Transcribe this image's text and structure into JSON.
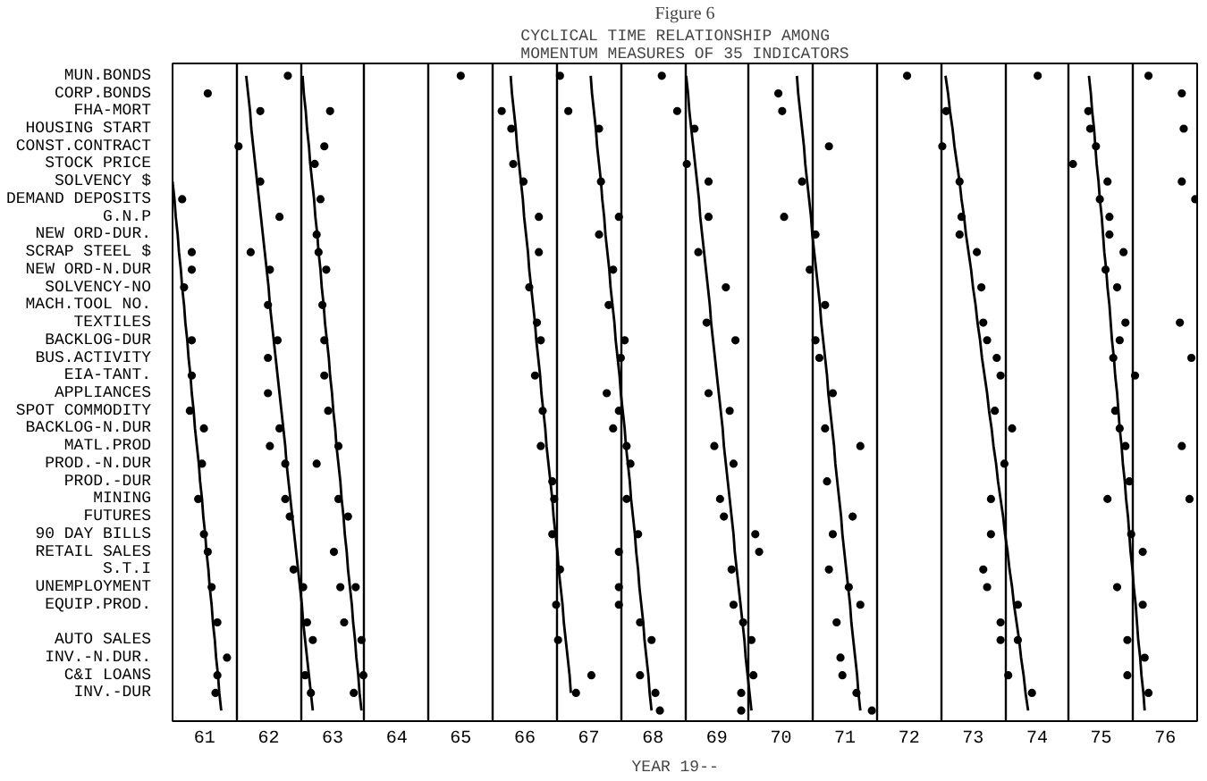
{
  "chart_data": {
    "type": "scatter",
    "orientation": "horizontal",
    "title": "Figure 6",
    "subtitle": "CYCLICAL TIME RELATIONSHIP AMONG\nMOMENTUM MEASURES OF 35 INDICATORS",
    "xlabel": "YEAR   19--",
    "xlim": [
      61,
      77
    ],
    "xticks": [
      {
        "value": 61,
        "label": null
      },
      {
        "value": 61.5,
        "label": "61"
      },
      {
        "value": 62,
        "label": null
      },
      {
        "value": 62.5,
        "label": "62"
      },
      {
        "value": 63,
        "label": null
      },
      {
        "value": 63.5,
        "label": "63"
      },
      {
        "value": 64,
        "label": null
      },
      {
        "value": 64.5,
        "label": "64"
      },
      {
        "value": 65,
        "label": null
      },
      {
        "value": 65.5,
        "label": "65"
      },
      {
        "value": 66,
        "label": null
      },
      {
        "value": 66.5,
        "label": "66"
      },
      {
        "value": 67,
        "label": null
      },
      {
        "value": 67.5,
        "label": "67"
      },
      {
        "value": 68,
        "label": null
      },
      {
        "value": 68.5,
        "label": "68"
      },
      {
        "value": 69,
        "label": null
      },
      {
        "value": 69.5,
        "label": "69"
      },
      {
        "value": 70,
        "label": null
      },
      {
        "value": 70.5,
        "label": "70"
      },
      {
        "value": 71,
        "label": null
      },
      {
        "value": 71.5,
        "label": "71"
      },
      {
        "value": 72,
        "label": null
      },
      {
        "value": 72.5,
        "label": "72"
      },
      {
        "value": 73,
        "label": null
      },
      {
        "value": 73.5,
        "label": "73"
      },
      {
        "value": 74,
        "label": null
      },
      {
        "value": 74.5,
        "label": "74"
      },
      {
        "value": 75,
        "label": null
      },
      {
        "value": 75.5,
        "label": "75"
      },
      {
        "value": 76,
        "label": null
      },
      {
        "value": 76.5,
        "label": "76"
      },
      {
        "value": 77,
        "label": null
      }
    ],
    "categories": [
      "MUN.BONDS",
      "CORP.BONDS",
      "FHA-MORT",
      "HOUSING START",
      "CONST.CONTRACT",
      "STOCK PRICE",
      "SOLVENCY $",
      "DEMAND DEPOSITS",
      "G.N.P",
      "NEW ORD-DUR.",
      "SCRAP STEEL $",
      "NEW ORD-N.DUR",
      "SOLVENCY-NO",
      "MACH.TOOL NO.",
      "TEXTILES",
      "BACKLOG-DUR",
      "BUS.ACTIVITY",
      "EIA-TANT.",
      "APPLIANCES",
      "SPOT COMMODITY",
      "BACKLOG-N.DUR",
      "MATL.PROD",
      "PROD.-N.DUR",
      "PROD.-DUR",
      "MINING",
      "FUTURES",
      "90 DAY BILLS",
      "RETAIL SALES",
      "S.T.I",
      "UNEMPLOYMENT",
      "EQUIP.PROD.",
      null,
      "AUTO SALES",
      "INV.-N.DUR.",
      "C&I LOANS",
      "INV.-DUR",
      null
    ],
    "grid": "x",
    "marker": "circle",
    "series": [
      {
        "color": "#000000",
        "values": [
          62.8,
          61.55,
          62.37,
          66.29,
          62.03,
          63.22,
          62.37,
          61.15,
          62.67,
          63.25,
          61.3,
          61.3,
          61.18,
          62.49,
          66.69,
          61.3,
          62.49,
          61.3,
          62.49,
          61.27,
          61.49,
          62.52,
          61.46,
          66.93,
          61.4,
          62.83,
          61.49,
          61.55,
          62.89,
          61.61,
          66.99,
          61.7,
          63.19,
          61.85,
          61.7,
          61.67,
          68.61
        ]
      },
      {
        "color": "#000000",
        "values": [
          65.5,
          70.46,
          63.46,
          67.66,
          63.37,
          66.32,
          66.48,
          63.31,
          66.72,
          67.66,
          62.22,
          62.52,
          66.57,
          63.34,
          69.34,
          62.64,
          68.0,
          63.37,
          67.78,
          63.43,
          62.67,
          63.59,
          62.76,
          71.22,
          62.76,
          63.74,
          66.93,
          63.52,
          67.05,
          63.04,
          67.97,
          63.1,
          63.95,
          71.43,
          63.07,
          63.16,
          69.88
        ]
      },
      {
        "color": "#000000",
        "values": [
          67.05,
          76.76,
          66.14,
          69.15,
          71.25,
          69.03,
          67.69,
          75.48,
          67.97,
          71.04,
          63.28,
          63.4,
          69.64,
          67.81,
          73.66,
          63.37,
          71.1,
          66.66,
          69.37,
          66.78,
          67.88,
          66.75,
          63.25,
          75.94,
          63.59,
          69.61,
          68.27,
          67.97,
          69.73,
          63.62,
          69.76,
          63.68,
          67.02,
          76.18,
          63.98,
          63.83,
          71.92
        ]
      },
      {
        "color": "#000000",
        "values": [
          68.64,
          null,
          67.18,
          75.33,
          73.02,
          75.06,
          69.37,
          76.97,
          69.37,
          73.29,
          66.72,
          67.88,
          73.63,
          71.19,
          75.88,
          66.75,
          73.87,
          73.93,
          71.31,
          67.97,
          71.19,
          68.09,
          68.15,
          null,
          66.96,
          71.62,
          70.1,
          70.16,
          71.25,
          63.86,
          71.74,
          68.3,
          68.48,
          null,
          67.54,
          67.3,
          null
        ]
      },
      {
        "color": "#000000",
        "values": [
          72.47,
          null,
          68.88,
          76.79,
          75.42,
          null,
          70.83,
          null,
          70.55,
          75.63,
          69.21,
          70.95,
          75.75,
          null,
          76.73,
          68.06,
          75.69,
          76.03,
          null,
          69.7,
          74.11,
          69.46,
          69.76,
          null,
          68.09,
          null,
          71.31,
          76.15,
          73.66,
          67.97,
          74.2,
          69.91,
          70.04,
          null,
          68.3,
          68.54,
          null
        ]
      },
      {
        "color": "#000000",
        "values": [
          74.51,
          null,
          70.52,
          null,
          null,
          null,
          73.29,
          null,
          73.32,
          null,
          73.56,
          75.57,
          null,
          null,
          null,
          69.79,
          76.91,
          null,
          null,
          73.84,
          75.79,
          71.74,
          73.99,
          null,
          69.55,
          null,
          73.78,
          null,
          null,
          71.56,
          76.15,
          71.37,
          73.93,
          null,
          70.07,
          69.88,
          null
        ]
      },
      {
        "color": "#000000",
        "values": [
          76.24,
          null,
          73.08,
          null,
          null,
          null,
          75.6,
          null,
          75.63,
          null,
          75.85,
          null,
          null,
          null,
          null,
          71.04,
          null,
          null,
          null,
          75.72,
          null,
          75.88,
          null,
          null,
          73.78,
          null,
          75.97,
          null,
          null,
          73.72,
          null,
          73.93,
          74.2,
          null,
          71.46,
          71.68,
          null
        ]
      },
      {
        "color": "#000000",
        "values": [
          null,
          null,
          75.3,
          null,
          null,
          null,
          76.76,
          null,
          null,
          null,
          null,
          null,
          null,
          null,
          null,
          73.72,
          null,
          null,
          null,
          null,
          null,
          76.76,
          null,
          null,
          75.6,
          null,
          null,
          null,
          null,
          75.75,
          null,
          null,
          75.91,
          null,
          74.05,
          74.42,
          null
        ]
      },
      {
        "color": "#000000",
        "values": [
          null,
          null,
          null,
          null,
          null,
          null,
          null,
          null,
          null,
          null,
          null,
          null,
          null,
          null,
          null,
          75.79,
          null,
          null,
          null,
          null,
          null,
          null,
          null,
          null,
          76.88,
          null,
          null,
          null,
          null,
          null,
          null,
          null,
          null,
          null,
          75.91,
          76.24,
          null
        ]
      },
      {
        "type": "line",
        "marker": "none",
        "color": "#000000",
        "values": [
          null,
          null,
          null,
          null,
          null,
          null,
          61.0,
          61.03,
          61.05,
          61.08,
          61.1,
          61.13,
          61.15,
          61.18,
          61.2,
          61.23,
          61.25,
          61.28,
          61.3,
          61.33,
          61.35,
          61.38,
          61.41,
          61.43,
          61.46,
          61.48,
          61.51,
          61.53,
          61.56,
          61.58,
          61.61,
          61.63,
          61.66,
          61.68,
          61.71,
          61.73,
          61.76
        ]
      },
      {
        "type": "line",
        "marker": "none",
        "color": "#000000",
        "values": [
          62.15,
          62.18,
          62.21,
          62.23,
          62.26,
          62.29,
          62.32,
          62.35,
          62.38,
          62.41,
          62.44,
          62.47,
          62.5,
          62.52,
          62.55,
          62.58,
          62.61,
          62.64,
          62.67,
          62.7,
          62.73,
          62.76,
          62.78,
          62.81,
          62.84,
          62.87,
          62.9,
          62.93,
          62.96,
          62.99,
          63.02,
          63.04,
          63.07,
          63.1,
          63.13,
          63.16,
          63.19
        ]
      },
      {
        "type": "line",
        "marker": "none",
        "color": "#000000",
        "values": [
          63.03,
          63.05,
          63.08,
          63.1,
          63.13,
          63.15,
          63.18,
          63.21,
          63.23,
          63.26,
          63.28,
          63.31,
          63.33,
          63.36,
          63.38,
          63.41,
          63.44,
          63.46,
          63.49,
          63.51,
          63.54,
          63.56,
          63.59,
          63.62,
          63.64,
          63.67,
          63.69,
          63.72,
          63.74,
          63.77,
          63.8,
          63.82,
          63.85,
          63.87,
          63.9,
          63.92,
          63.95
        ]
      },
      {
        "type": "line",
        "marker": "none",
        "color": "#000000",
        "values": [
          66.28,
          66.3,
          66.33,
          66.36,
          66.38,
          66.41,
          66.44,
          66.47,
          66.49,
          66.52,
          66.55,
          66.57,
          66.6,
          66.63,
          66.66,
          66.68,
          66.71,
          66.74,
          66.76,
          66.79,
          66.82,
          66.84,
          66.87,
          66.9,
          66.93,
          66.95,
          66.98,
          67.01,
          67.03,
          67.06,
          67.09,
          67.11,
          67.14,
          67.17,
          67.2,
          67.22,
          null
        ]
      },
      {
        "type": "line",
        "marker": "none",
        "color": "#000000",
        "values": [
          67.53,
          67.55,
          67.58,
          67.61,
          67.63,
          67.66,
          67.69,
          67.71,
          67.74,
          67.76,
          67.79,
          67.82,
          67.84,
          67.87,
          67.9,
          67.92,
          67.95,
          67.98,
          68.0,
          68.03,
          68.06,
          68.08,
          68.11,
          68.14,
          68.16,
          68.19,
          68.22,
          68.24,
          68.27,
          68.29,
          68.32,
          68.35,
          68.37,
          68.4,
          68.43,
          68.45,
          68.48
        ]
      },
      {
        "type": "line",
        "marker": "none",
        "color": "#000000",
        "values": [
          69.02,
          69.05,
          69.07,
          69.1,
          69.13,
          69.16,
          69.19,
          69.22,
          69.24,
          69.27,
          69.3,
          69.33,
          69.36,
          69.39,
          69.41,
          69.44,
          69.47,
          69.5,
          69.53,
          69.56,
          69.59,
          69.61,
          69.64,
          69.67,
          69.7,
          69.73,
          69.76,
          69.78,
          69.81,
          69.84,
          69.87,
          69.9,
          69.93,
          69.95,
          69.98,
          70.01,
          70.04
        ]
      },
      {
        "type": "line",
        "marker": "none",
        "color": "#000000",
        "values": [
          70.75,
          70.77,
          70.8,
          70.83,
          70.86,
          70.88,
          70.91,
          70.94,
          70.97,
          70.99,
          71.02,
          71.05,
          71.08,
          71.11,
          71.13,
          71.16,
          71.19,
          71.22,
          71.24,
          71.27,
          71.3,
          71.33,
          71.35,
          71.38,
          71.41,
          71.44,
          71.46,
          71.49,
          71.52,
          71.55,
          71.58,
          71.6,
          71.63,
          71.66,
          71.69,
          71.71,
          71.74
        ]
      },
      {
        "type": "line",
        "marker": "none",
        "color": "#000000",
        "values": [
          73.07,
          73.11,
          73.14,
          73.18,
          73.21,
          73.25,
          73.29,
          73.32,
          73.36,
          73.39,
          73.43,
          73.47,
          73.5,
          73.54,
          73.57,
          73.61,
          73.64,
          73.68,
          73.72,
          73.75,
          73.79,
          73.82,
          73.86,
          73.89,
          73.93,
          73.97,
          74.0,
          74.04,
          74.07,
          74.11,
          74.14,
          74.18,
          74.22,
          74.25,
          74.29,
          74.32,
          74.36
        ]
      },
      {
        "type": "line",
        "marker": "none",
        "color": "#000000",
        "values": [
          75.31,
          75.34,
          75.36,
          75.39,
          75.41,
          75.43,
          75.46,
          75.48,
          75.51,
          75.53,
          75.55,
          75.58,
          75.6,
          75.63,
          75.65,
          75.67,
          75.7,
          75.72,
          75.75,
          75.77,
          75.79,
          75.82,
          75.84,
          75.87,
          75.89,
          75.92,
          75.94,
          75.96,
          75.99,
          76.01,
          76.04,
          76.06,
          76.08,
          76.11,
          76.13,
          76.16,
          76.18
        ]
      }
    ]
  }
}
